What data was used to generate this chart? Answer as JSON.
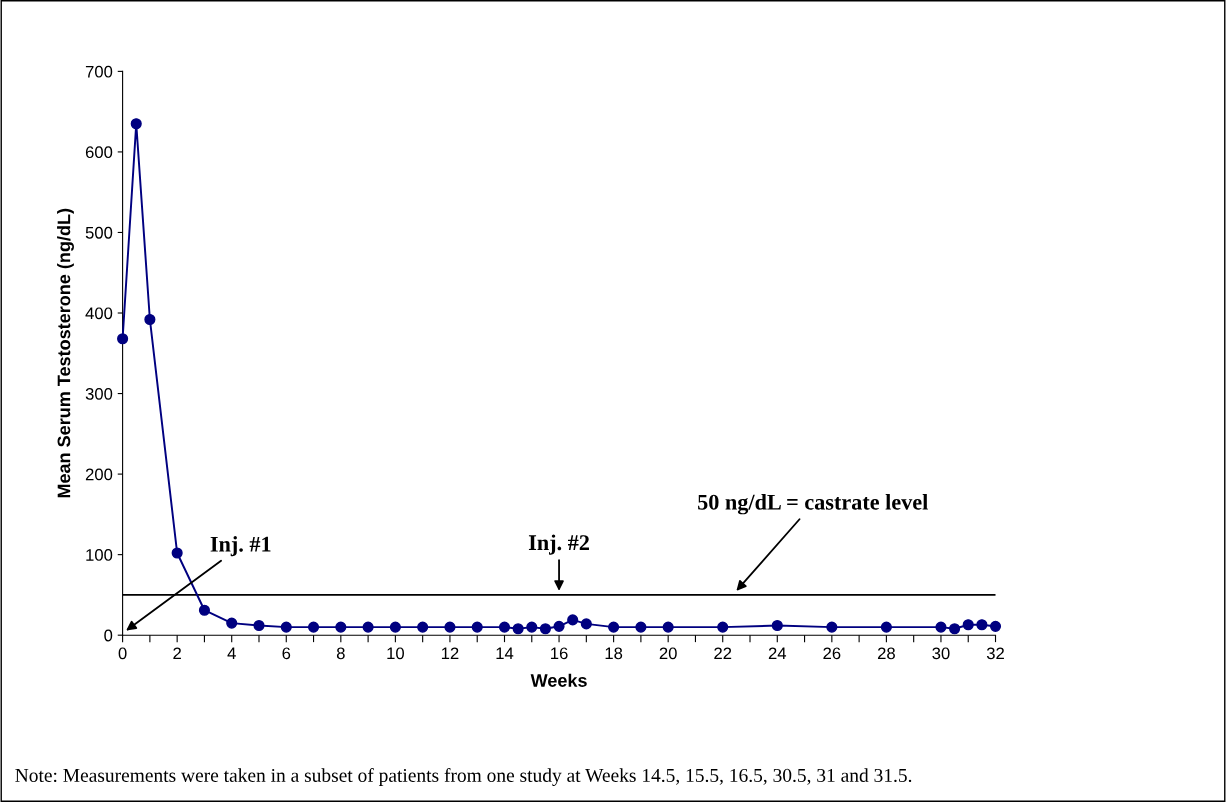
{
  "chart_data": {
    "type": "line",
    "xlabel": "Weeks",
    "ylabel": "Mean Serum Testosterone (ng/dL)",
    "x": [
      0,
      0.5,
      1,
      2,
      3,
      4,
      5,
      6,
      7,
      8,
      9,
      10,
      11,
      12,
      13,
      14,
      14.5,
      15,
      15.5,
      16,
      16.5,
      17,
      18,
      19,
      20,
      22,
      24,
      26,
      28,
      30,
      30.5,
      31,
      31.5,
      32
    ],
    "series": [
      {
        "color": "#000080",
        "values": [
          368,
          635,
          392,
          102,
          31,
          15,
          12,
          10,
          10,
          10,
          10,
          10,
          10,
          10,
          10,
          10,
          8,
          10,
          8,
          11,
          19,
          14,
          10,
          10,
          10,
          10,
          12,
          10,
          10,
          10,
          8,
          13,
          13,
          11
        ]
      }
    ],
    "marker": "circle",
    "line_style": "solid",
    "grid": false,
    "legend": false,
    "xlim": [
      0,
      32
    ],
    "xticks": [
      0,
      {
        "value": 1,
        "label": null
      },
      2,
      {
        "value": 3,
        "label": null
      },
      4,
      {
        "value": 5,
        "label": null
      },
      6,
      {
        "value": 7,
        "label": null
      },
      8,
      {
        "value": 9,
        "label": null
      },
      10,
      {
        "value": 11,
        "label": null
      },
      12,
      {
        "value": 13,
        "label": null
      },
      14,
      {
        "value": 15,
        "label": null
      },
      16,
      {
        "value": 17,
        "label": null
      },
      18,
      {
        "value": 19,
        "label": null
      },
      20,
      {
        "value": 21,
        "label": null
      },
      22,
      {
        "value": 23,
        "label": null
      },
      24,
      {
        "value": 25,
        "label": null
      },
      26,
      {
        "value": 27,
        "label": null
      },
      28,
      {
        "value": 29,
        "label": null
      },
      30,
      {
        "value": 31,
        "label": null
      },
      32
    ],
    "ylim": [
      0,
      700
    ],
    "yticks": [
      0,
      100,
      200,
      300,
      400,
      500,
      600,
      700
    ],
    "ref_lines": [
      {
        "axis": "y",
        "value": 50,
        "color": "#000000",
        "line_style": "solid"
      }
    ],
    "annotations": [
      "Inj. #1",
      {
        "text": "Inj. #2",
        "x": 16,
        "y": 55
      },
      {
        "text": "50 ng/dL = castrate level",
        "x": 22.5,
        "y": 55
      },
      "Note: Measurements were taken in a subset of patients from one study at Weeks 14.5, 15.5, 16.5, 30.5, 31 and 31.5."
    ]
  }
}
